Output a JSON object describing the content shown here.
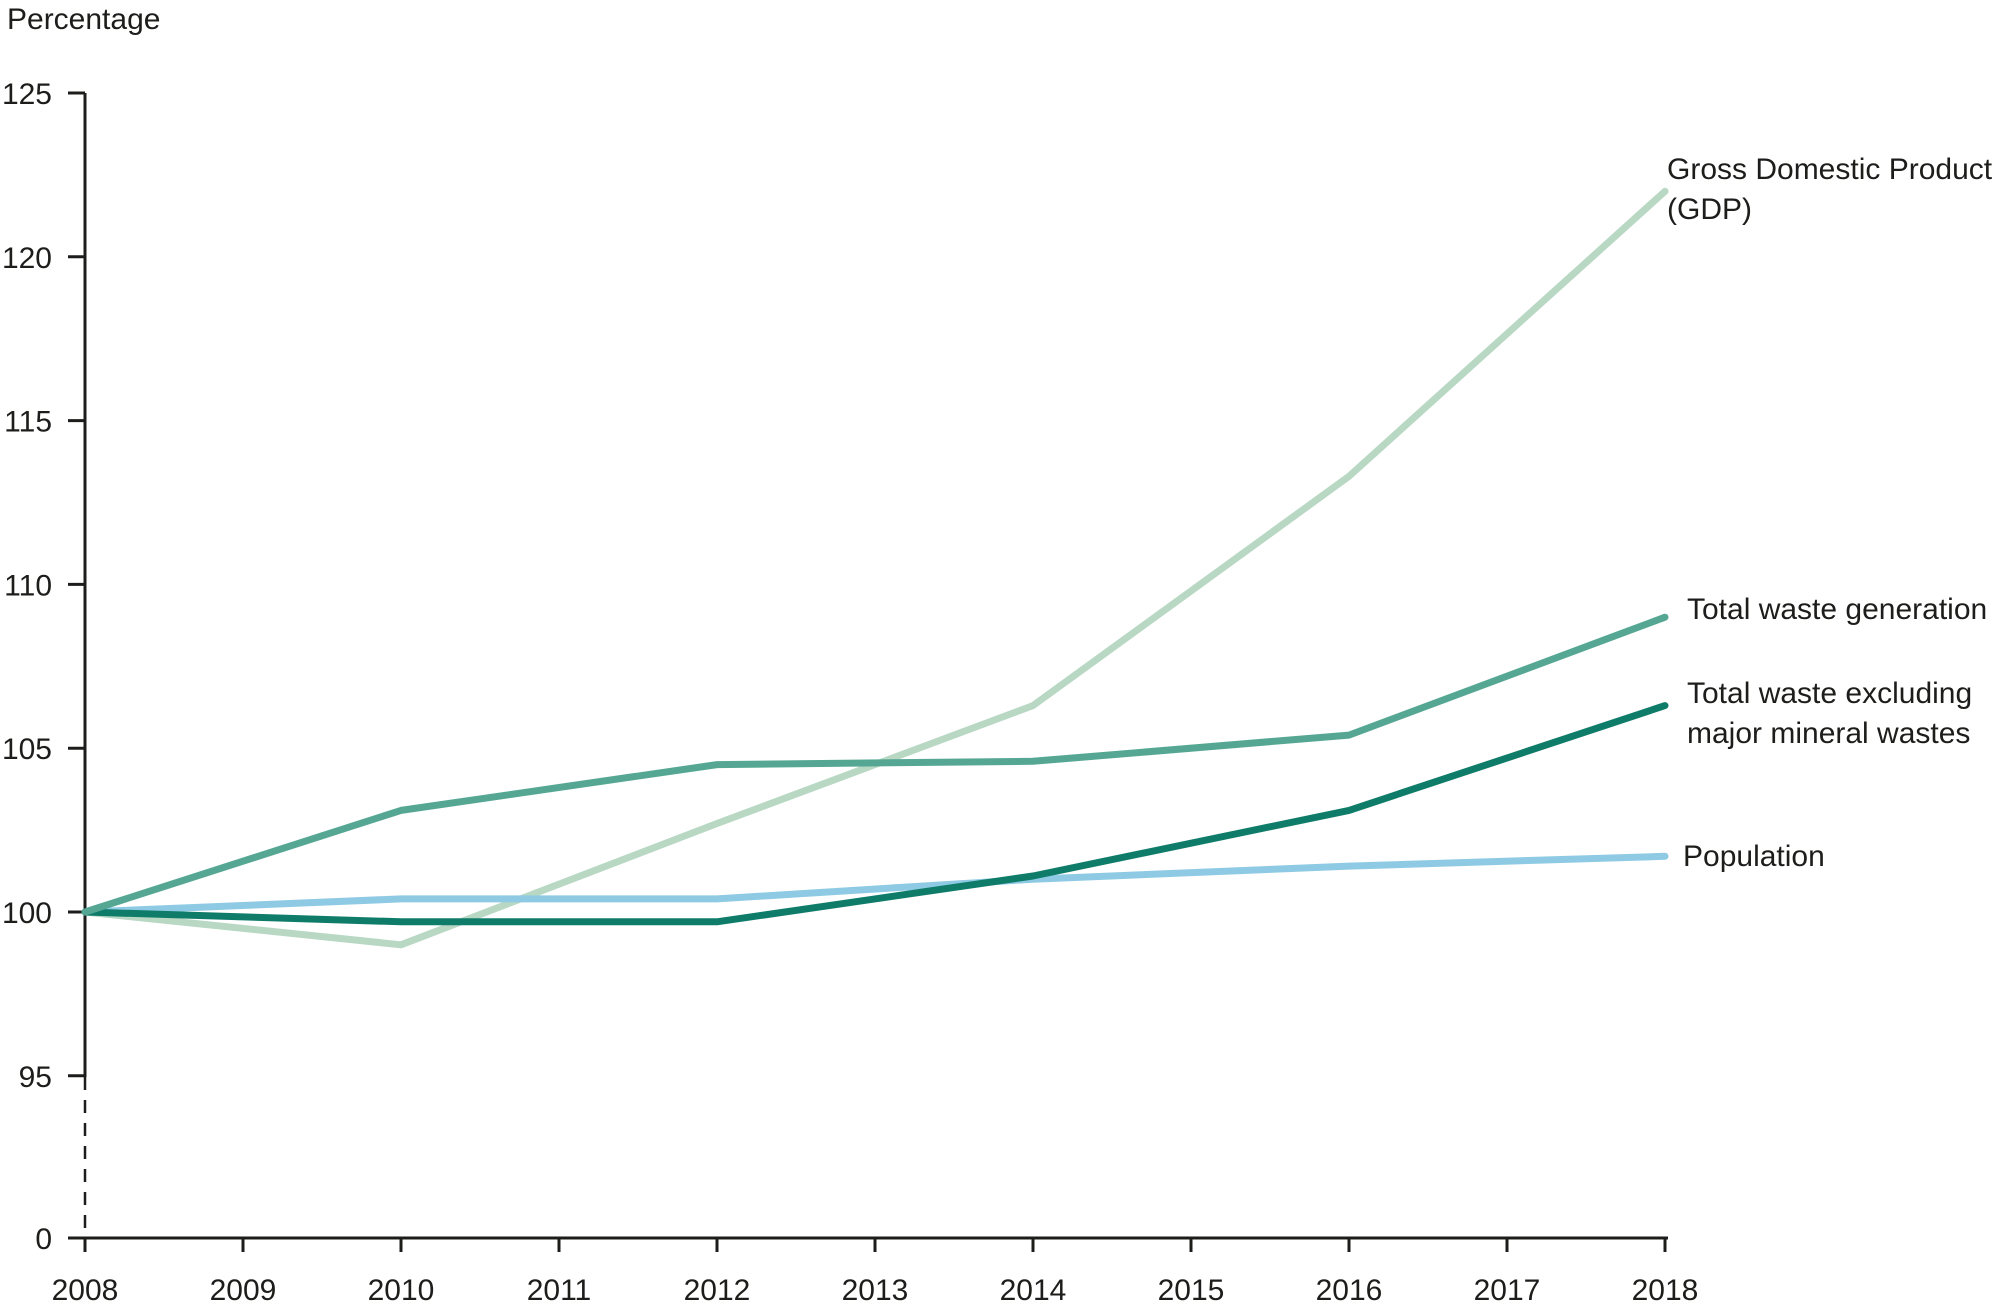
{
  "title": "Percentage",
  "chart_data": {
    "type": "line",
    "title": "Percentage",
    "xlabel": "",
    "ylabel": "Percentage",
    "x": [
      2008,
      2010,
      2012,
      2014,
      2016,
      2018
    ],
    "series": [
      {
        "key": "gdp",
        "name": "Gross Domestic Product (GDP)",
        "color": "#b8d8c4",
        "values": [
          100,
          99,
          102.7,
          106.3,
          113.3,
          122
        ]
      },
      {
        "key": "population",
        "name": "Population",
        "color": "#8ecae4",
        "values": [
          100,
          100.4,
          100.4,
          101.0,
          101.4,
          101.7
        ]
      },
      {
        "key": "waste_excl",
        "name": "Total waste excluding major mineral wastes",
        "color": "#0f7c69",
        "values": [
          100,
          99.7,
          99.7,
          101.1,
          103.1,
          106.3
        ]
      },
      {
        "key": "waste_gen",
        "name": "Total waste generation",
        "color": "#55a794",
        "values": [
          100,
          103.1,
          104.5,
          104.6,
          105.4,
          109
        ]
      }
    ],
    "x_ticks": [
      2008,
      2009,
      2010,
      2011,
      2012,
      2013,
      2014,
      2015,
      2016,
      2017,
      2018
    ],
    "y_ticks": [
      0,
      95,
      100,
      105,
      110,
      115,
      120,
      125
    ],
    "y_axis_break_between": [
      0,
      95
    ],
    "grid": false,
    "legend_position": "right of line ends",
    "axis_color": "#1d1d1b"
  },
  "legend": {
    "gdp": "Gross Domestic Product\n(GDP)",
    "waste_gen": "Total waste generation",
    "waste_excl": "Total waste excluding\nmajor mineral wastes",
    "population": "Population"
  }
}
